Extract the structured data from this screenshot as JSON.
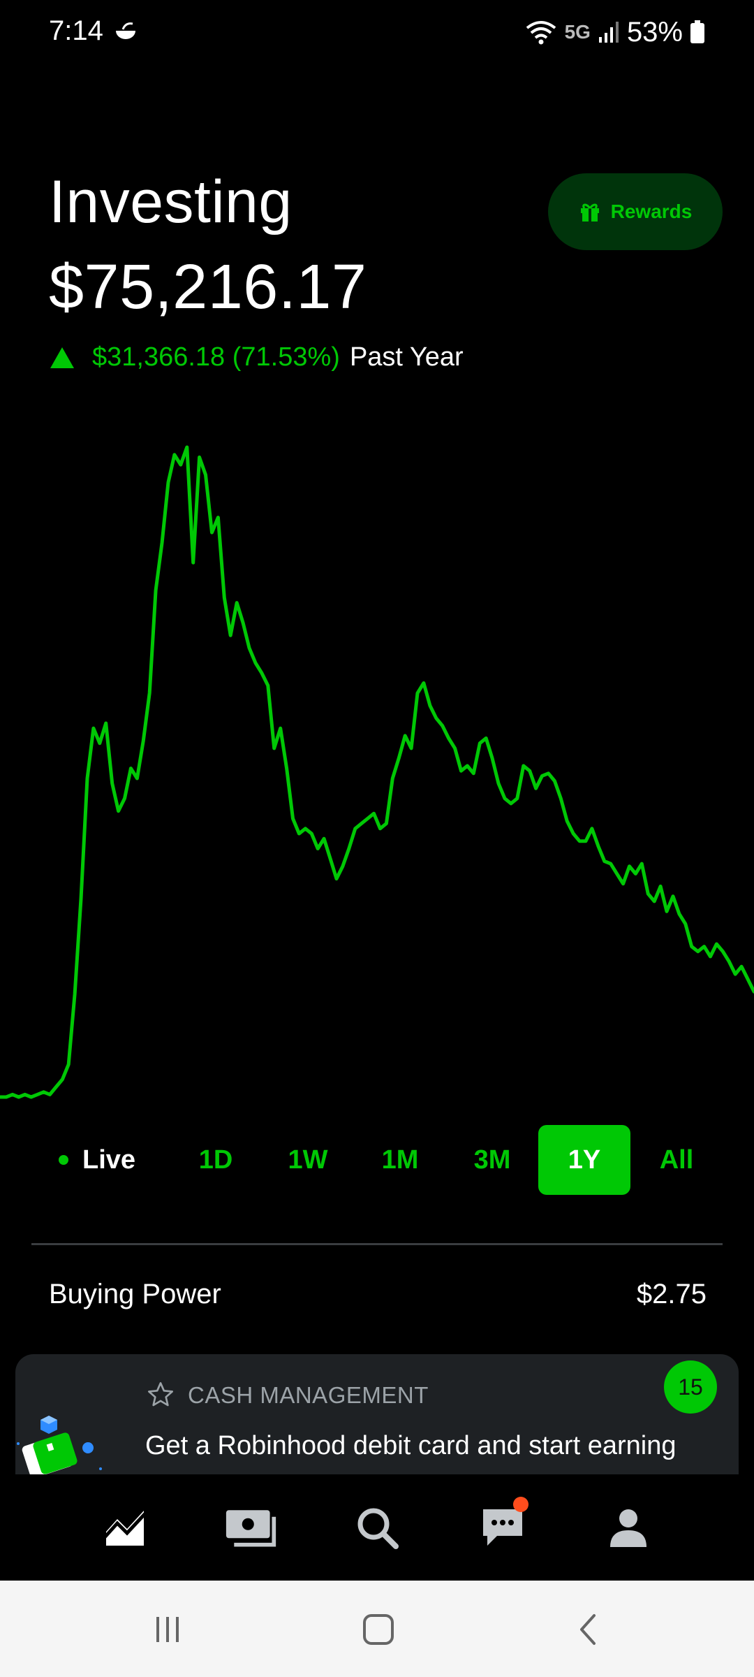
{
  "status_bar": {
    "time": "7:14",
    "network": "5G",
    "battery": "53%",
    "icons": [
      "notification-app-icon",
      "wifi-icon",
      "signal-icon",
      "battery-icon"
    ]
  },
  "header": {
    "title": "Investing",
    "portfolio_value": "$75,216.17",
    "change_amount": "$31,366.18 (71.53%)",
    "change_period": "Past Year",
    "change_direction": "up"
  },
  "rewards_button": {
    "label": "Rewards",
    "icon": "gift-icon"
  },
  "colors": {
    "accent": "#00c805",
    "background": "#000000",
    "card": "#1e2124",
    "notification_dot": "#ff4d1d"
  },
  "chart_data": {
    "type": "line",
    "range": "1Y",
    "values": [
      11,
      11,
      12,
      11,
      12,
      11,
      12,
      13,
      12,
      15,
      18,
      24,
      52,
      90,
      138,
      158,
      152,
      160,
      136,
      125,
      130,
      142,
      138,
      153,
      172,
      213,
      232,
      256,
      267,
      263,
      270,
      224,
      266,
      259,
      236,
      242,
      210,
      195,
      208,
      200,
      190,
      184,
      180,
      175,
      150,
      158,
      142,
      122,
      116,
      118,
      116,
      110,
      114,
      106,
      98,
      103,
      110,
      118,
      120,
      122,
      124,
      118,
      120,
      138,
      146,
      155,
      150,
      172,
      176,
      167,
      162,
      159,
      154,
      150,
      141,
      143,
      140,
      152,
      154,
      146,
      136,
      130,
      128,
      130,
      143,
      141,
      134,
      139,
      140,
      137,
      130,
      121,
      116,
      113,
      113,
      118,
      111,
      105,
      104,
      100,
      96,
      103,
      100,
      104,
      92,
      89,
      95,
      85,
      91,
      84,
      80,
      71,
      69,
      71,
      67,
      72,
      69,
      65,
      60,
      63,
      58,
      53
    ]
  },
  "time_ranges": {
    "live_label": "Live",
    "options": [
      "1D",
      "1W",
      "1M",
      "3M",
      "1Y",
      "All"
    ],
    "selected": "1Y"
  },
  "buying_power": {
    "label": "Buying Power",
    "value": "$2.75"
  },
  "card": {
    "category": "CASH MANAGEMENT",
    "text": "Get a Robinhood debit card and start earning",
    "badge_count": "15",
    "icons": [
      "star-icon",
      "debit-card-illustration"
    ]
  },
  "bottom_nav": {
    "items": [
      "chart-icon",
      "cash-icon",
      "search-icon",
      "messages-icon",
      "account-icon"
    ],
    "messages_has_notification": true
  },
  "system_nav": [
    "recents-icon",
    "home-icon",
    "back-icon"
  ]
}
